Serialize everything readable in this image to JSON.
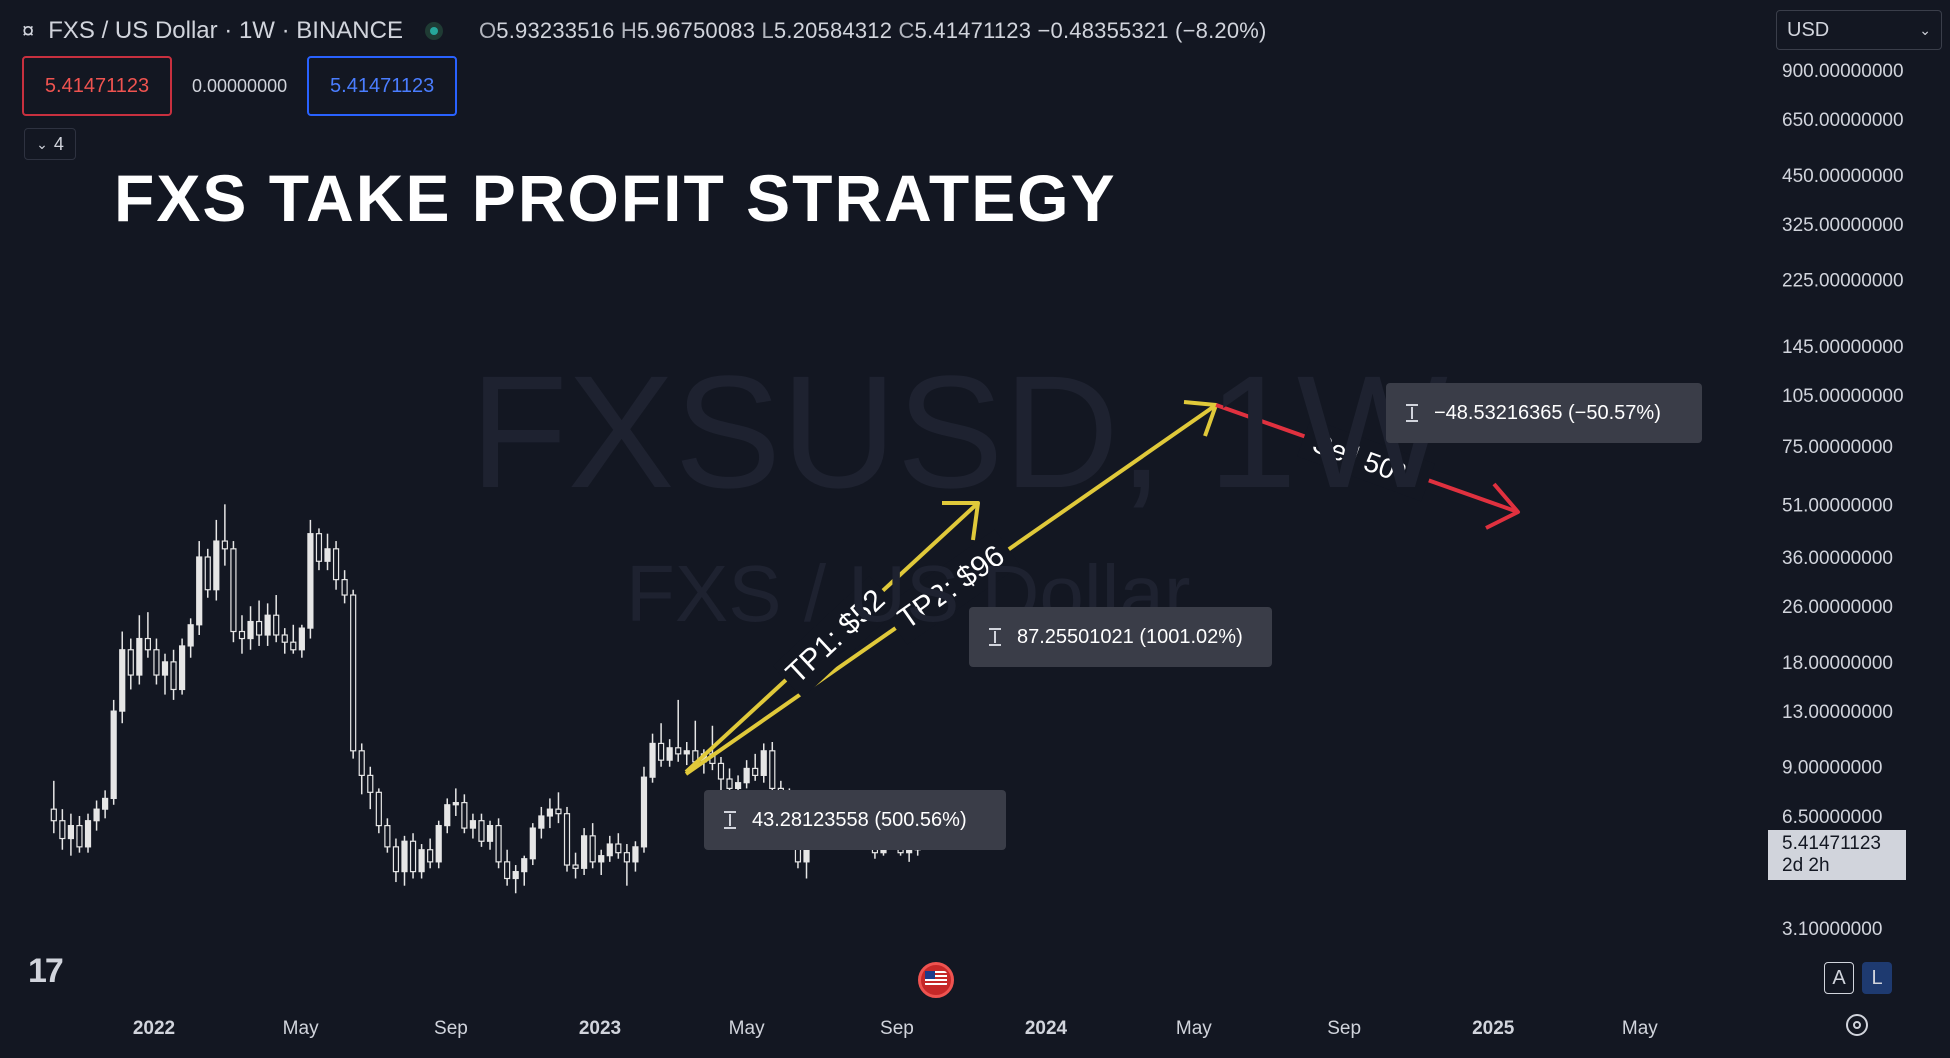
{
  "header": {
    "symbol_icon": "currency-sign-icon",
    "symbol": "FXS / US Dollar · 1W · BINANCE",
    "ohlc": {
      "o_label": "O",
      "o": "5.93233516",
      "h_label": "H",
      "h": "5.96750083",
      "l_label": "L",
      "l": "5.20584312",
      "c_label": "C",
      "c": "5.41471123",
      "change": "−0.48355321 (−8.20%)"
    },
    "currency": "USD"
  },
  "order": {
    "sell_price": "5.41471123",
    "spread": "0.00000000",
    "buy_price": "5.41471123"
  },
  "indicators_count": "4",
  "annotation_title": "FXS TAKE PROFIT STRATEGY",
  "watermark": {
    "line1": "FXSUSD, 1W",
    "line2": "FXS / US Dollar"
  },
  "measures": [
    {
      "text": "43.28123558 (500.56%)"
    },
    {
      "text": "87.25501021 (1001.02%)"
    },
    {
      "text": "−48.53216365 (−50.57%)"
    }
  ],
  "current_price_tag": {
    "price": "5.41471123",
    "countdown": "2d 2h"
  },
  "colors": {
    "background": "#131722",
    "arrow_tp": "#e0c93a",
    "arrow_sell": "#e0313f",
    "candle": "#e6e6e6"
  },
  "chart_data": {
    "type": "candlestick",
    "y_scale": "log",
    "y_ticks": [
      "900.00000000",
      "650.00000000",
      "450.00000000",
      "325.00000000",
      "225.00000000",
      "145.00000000",
      "105.00000000",
      "75.00000000",
      "51.00000000",
      "36.00000000",
      "26.00000000",
      "18.00000000",
      "13.00000000",
      "9.00000000",
      "6.50000000",
      "3.10000000"
    ],
    "y_tick_values": [
      900,
      650,
      450,
      325,
      225,
      145,
      105,
      75,
      51,
      36,
      26,
      18,
      13,
      9,
      6.5,
      3.1
    ],
    "x_ticks": [
      {
        "label": "2022",
        "date": "2022-01-01",
        "year": true
      },
      {
        "label": "May",
        "date": "2022-05-01",
        "year": false
      },
      {
        "label": "Sep",
        "date": "2022-09-01",
        "year": false
      },
      {
        "label": "2023",
        "date": "2023-01-01",
        "year": true
      },
      {
        "label": "May",
        "date": "2023-05-01",
        "year": false
      },
      {
        "label": "Sep",
        "date": "2023-09-01",
        "year": false
      },
      {
        "label": "2024",
        "date": "2024-01-01",
        "year": true
      },
      {
        "label": "May",
        "date": "2024-05-01",
        "year": false
      },
      {
        "label": "Sep",
        "date": "2024-09-01",
        "year": false
      },
      {
        "label": "2025",
        "date": "2025-01-01",
        "year": true
      },
      {
        "label": "May",
        "date": "2025-05-01",
        "year": false
      }
    ],
    "candles": [
      {
        "date": "2021-10-11",
        "o": 6.8,
        "h": 8.2,
        "l": 5.8,
        "c": 6.3
      },
      {
        "date": "2021-10-18",
        "o": 6.3,
        "h": 6.8,
        "l": 5.2,
        "c": 5.6
      },
      {
        "date": "2021-10-25",
        "o": 5.6,
        "h": 6.6,
        "l": 5.0,
        "c": 6.1
      },
      {
        "date": "2021-11-01",
        "o": 6.1,
        "h": 6.5,
        "l": 5.1,
        "c": 5.3
      },
      {
        "date": "2021-11-08",
        "o": 5.3,
        "h": 6.6,
        "l": 5.1,
        "c": 6.3
      },
      {
        "date": "2021-11-15",
        "o": 6.3,
        "h": 7.2,
        "l": 5.9,
        "c": 6.8
      },
      {
        "date": "2021-11-22",
        "o": 6.8,
        "h": 7.7,
        "l": 6.4,
        "c": 7.3
      },
      {
        "date": "2021-11-29",
        "o": 7.3,
        "h": 14.0,
        "l": 7.0,
        "c": 13.0
      },
      {
        "date": "2021-12-06",
        "o": 13.0,
        "h": 22.0,
        "l": 12.0,
        "c": 19.5
      },
      {
        "date": "2021-12-13",
        "o": 19.5,
        "h": 21.0,
        "l": 15.0,
        "c": 16.5
      },
      {
        "date": "2021-12-20",
        "o": 16.5,
        "h": 24.5,
        "l": 15.5,
        "c": 21.0
      },
      {
        "date": "2021-12-27",
        "o": 21.0,
        "h": 25.0,
        "l": 18.5,
        "c": 19.5
      },
      {
        "date": "2022-01-03",
        "o": 19.5,
        "h": 21.0,
        "l": 15.5,
        "c": 16.5
      },
      {
        "date": "2022-01-10",
        "o": 16.5,
        "h": 19.0,
        "l": 14.5,
        "c": 18.0
      },
      {
        "date": "2022-01-17",
        "o": 18.0,
        "h": 19.5,
        "l": 14.0,
        "c": 15.0
      },
      {
        "date": "2022-01-24",
        "o": 15.0,
        "h": 21.0,
        "l": 14.5,
        "c": 20.0
      },
      {
        "date": "2022-01-31",
        "o": 20.0,
        "h": 24.0,
        "l": 18.5,
        "c": 23.0
      },
      {
        "date": "2022-02-07",
        "o": 23.0,
        "h": 40.0,
        "l": 21.5,
        "c": 36.0
      },
      {
        "date": "2022-02-14",
        "o": 36.0,
        "h": 38.0,
        "l": 27.5,
        "c": 29.0
      },
      {
        "date": "2022-02-21",
        "o": 29.0,
        "h": 46.0,
        "l": 27.0,
        "c": 40.0
      },
      {
        "date": "2022-02-28",
        "o": 40.0,
        "h": 51.0,
        "l": 34.0,
        "c": 38.0
      },
      {
        "date": "2022-03-07",
        "o": 38.0,
        "h": 40.0,
        "l": 20.5,
        "c": 22.0
      },
      {
        "date": "2022-03-14",
        "o": 22.0,
        "h": 24.5,
        "l": 19.0,
        "c": 21.0
      },
      {
        "date": "2022-03-21",
        "o": 21.0,
        "h": 26.0,
        "l": 19.5,
        "c": 23.5
      },
      {
        "date": "2022-03-28",
        "o": 23.5,
        "h": 27.0,
        "l": 20.0,
        "c": 21.5
      },
      {
        "date": "2022-04-04",
        "o": 21.5,
        "h": 26.5,
        "l": 20.0,
        "c": 24.5
      },
      {
        "date": "2022-04-11",
        "o": 24.5,
        "h": 28.0,
        "l": 20.5,
        "c": 21.5
      },
      {
        "date": "2022-04-18",
        "o": 21.5,
        "h": 22.5,
        "l": 19.0,
        "c": 20.5
      },
      {
        "date": "2022-04-25",
        "o": 20.5,
        "h": 23.0,
        "l": 19.0,
        "c": 19.5
      },
      {
        "date": "2022-05-02",
        "o": 19.5,
        "h": 23.0,
        "l": 18.5,
        "c": 22.5
      },
      {
        "date": "2022-05-09",
        "o": 22.5,
        "h": 46.0,
        "l": 21.0,
        "c": 42.0
      },
      {
        "date": "2022-05-16",
        "o": 42.0,
        "h": 43.5,
        "l": 33.0,
        "c": 35.0
      },
      {
        "date": "2022-05-23",
        "o": 35.0,
        "h": 42.0,
        "l": 33.0,
        "c": 38.0
      },
      {
        "date": "2022-05-30",
        "o": 38.0,
        "h": 40.0,
        "l": 29.0,
        "c": 31.0
      },
      {
        "date": "2022-06-06",
        "o": 31.0,
        "h": 33.0,
        "l": 26.5,
        "c": 28.0
      },
      {
        "date": "2022-06-13",
        "o": 28.0,
        "h": 29.0,
        "l": 9.5,
        "c": 10.0
      },
      {
        "date": "2022-06-20",
        "o": 10.0,
        "h": 10.5,
        "l": 7.5,
        "c": 8.5
      },
      {
        "date": "2022-06-27",
        "o": 8.5,
        "h": 9.0,
        "l": 6.8,
        "c": 7.6
      },
      {
        "date": "2022-07-04",
        "o": 7.6,
        "h": 7.8,
        "l": 5.8,
        "c": 6.1
      },
      {
        "date": "2022-07-11",
        "o": 6.1,
        "h": 6.4,
        "l": 5.1,
        "c": 5.3
      },
      {
        "date": "2022-07-18",
        "o": 5.3,
        "h": 5.6,
        "l": 4.2,
        "c": 4.5
      },
      {
        "date": "2022-07-25",
        "o": 4.5,
        "h": 5.7,
        "l": 4.1,
        "c": 5.5
      },
      {
        "date": "2022-08-01",
        "o": 5.5,
        "h": 5.8,
        "l": 4.3,
        "c": 4.5
      },
      {
        "date": "2022-08-08",
        "o": 4.5,
        "h": 5.4,
        "l": 4.3,
        "c": 5.2
      },
      {
        "date": "2022-08-15",
        "o": 5.2,
        "h": 5.6,
        "l": 4.6,
        "c": 4.8
      },
      {
        "date": "2022-08-22",
        "o": 4.8,
        "h": 6.3,
        "l": 4.6,
        "c": 6.1
      },
      {
        "date": "2022-08-29",
        "o": 6.1,
        "h": 7.3,
        "l": 5.8,
        "c": 7.0
      },
      {
        "date": "2022-09-05",
        "o": 7.0,
        "h": 7.8,
        "l": 6.5,
        "c": 7.1
      },
      {
        "date": "2022-09-12",
        "o": 7.1,
        "h": 7.5,
        "l": 5.8,
        "c": 6.0
      },
      {
        "date": "2022-09-19",
        "o": 6.0,
        "h": 6.6,
        "l": 5.6,
        "c": 6.3
      },
      {
        "date": "2022-09-26",
        "o": 6.3,
        "h": 6.6,
        "l": 5.3,
        "c": 5.5
      },
      {
        "date": "2022-10-03",
        "o": 5.5,
        "h": 6.3,
        "l": 5.2,
        "c": 6.1
      },
      {
        "date": "2022-10-10",
        "o": 6.1,
        "h": 6.4,
        "l": 4.6,
        "c": 4.8
      },
      {
        "date": "2022-10-17",
        "o": 4.8,
        "h": 5.2,
        "l": 4.1,
        "c": 4.3
      },
      {
        "date": "2022-10-24",
        "o": 4.3,
        "h": 4.7,
        "l": 3.9,
        "c": 4.5
      },
      {
        "date": "2022-10-31",
        "o": 4.5,
        "h": 5.0,
        "l": 4.1,
        "c": 4.9
      },
      {
        "date": "2022-11-07",
        "o": 4.9,
        "h": 6.2,
        "l": 4.7,
        "c": 6.0
      },
      {
        "date": "2022-11-14",
        "o": 6.0,
        "h": 6.9,
        "l": 5.6,
        "c": 6.5
      },
      {
        "date": "2022-11-21",
        "o": 6.5,
        "h": 7.3,
        "l": 6.0,
        "c": 6.8
      },
      {
        "date": "2022-11-28",
        "o": 6.8,
        "h": 7.6,
        "l": 6.2,
        "c": 6.6
      },
      {
        "date": "2022-12-05",
        "o": 6.6,
        "h": 6.9,
        "l": 4.5,
        "c": 4.7
      },
      {
        "date": "2022-12-12",
        "o": 4.7,
        "h": 5.1,
        "l": 4.3,
        "c": 4.6
      },
      {
        "date": "2022-12-19",
        "o": 4.6,
        "h": 6.0,
        "l": 4.4,
        "c": 5.7
      },
      {
        "date": "2022-12-26",
        "o": 5.7,
        "h": 6.2,
        "l": 4.6,
        "c": 4.8
      },
      {
        "date": "2023-01-02",
        "o": 4.8,
        "h": 5.2,
        "l": 4.4,
        "c": 5.0
      },
      {
        "date": "2023-01-09",
        "o": 5.0,
        "h": 5.7,
        "l": 4.8,
        "c": 5.4
      },
      {
        "date": "2023-01-16",
        "o": 5.4,
        "h": 5.8,
        "l": 4.9,
        "c": 5.1
      },
      {
        "date": "2023-01-23",
        "o": 5.1,
        "h": 5.4,
        "l": 4.1,
        "c": 4.8
      },
      {
        "date": "2023-01-30",
        "o": 4.8,
        "h": 5.5,
        "l": 4.5,
        "c": 5.3
      },
      {
        "date": "2023-02-06",
        "o": 5.3,
        "h": 9.0,
        "l": 5.1,
        "c": 8.4
      },
      {
        "date": "2023-02-13",
        "o": 8.4,
        "h": 11.2,
        "l": 8.1,
        "c": 10.5
      },
      {
        "date": "2023-02-20",
        "o": 10.5,
        "h": 12.0,
        "l": 9.0,
        "c": 9.4
      },
      {
        "date": "2023-02-27",
        "o": 9.4,
        "h": 10.8,
        "l": 9.0,
        "c": 10.2
      },
      {
        "date": "2023-03-06",
        "o": 10.2,
        "h": 14.0,
        "l": 9.3,
        "c": 9.8
      },
      {
        "date": "2023-03-13",
        "o": 9.8,
        "h": 10.6,
        "l": 9.1,
        "c": 10.0
      },
      {
        "date": "2023-03-20",
        "o": 10.0,
        "h": 12.2,
        "l": 9.0,
        "c": 9.3
      },
      {
        "date": "2023-03-27",
        "o": 9.3,
        "h": 10.1,
        "l": 8.6,
        "c": 9.8
      },
      {
        "date": "2023-04-03",
        "o": 9.8,
        "h": 11.8,
        "l": 8.8,
        "c": 9.2
      },
      {
        "date": "2023-04-10",
        "o": 9.2,
        "h": 9.6,
        "l": 6.5,
        "c": 8.3
      },
      {
        "date": "2023-04-17",
        "o": 8.3,
        "h": 8.9,
        "l": 7.5,
        "c": 7.8
      },
      {
        "date": "2023-04-24",
        "o": 7.8,
        "h": 8.5,
        "l": 7.3,
        "c": 8.1
      },
      {
        "date": "2023-05-01",
        "o": 8.1,
        "h": 9.4,
        "l": 7.8,
        "c": 8.9
      },
      {
        "date": "2023-05-08",
        "o": 8.9,
        "h": 9.8,
        "l": 8.2,
        "c": 8.5
      },
      {
        "date": "2023-05-15",
        "o": 8.5,
        "h": 10.5,
        "l": 8.1,
        "c": 10.0
      },
      {
        "date": "2023-05-22",
        "o": 10.0,
        "h": 10.6,
        "l": 7.6,
        "c": 7.8
      },
      {
        "date": "2023-05-29",
        "o": 7.8,
        "h": 8.2,
        "l": 7.3,
        "c": 7.6
      },
      {
        "date": "2023-06-05",
        "o": 7.6,
        "h": 7.8,
        "l": 5.9,
        "c": 6.1
      },
      {
        "date": "2023-06-12",
        "o": 6.1,
        "h": 6.4,
        "l": 4.6,
        "c": 4.8
      },
      {
        "date": "2023-06-19",
        "o": 4.8,
        "h": 5.5,
        "l": 4.3,
        "c": 5.3
      },
      {
        "date": "2023-06-26",
        "o": 5.3,
        "h": 6.8,
        "l": 5.2,
        "c": 6.2
      },
      {
        "date": "2023-07-03",
        "o": 6.2,
        "h": 6.8,
        "l": 5.8,
        "c": 6.2
      },
      {
        "date": "2023-07-10",
        "o": 6.2,
        "h": 6.8,
        "l": 5.9,
        "c": 6.1
      },
      {
        "date": "2023-07-17",
        "o": 6.1,
        "h": 6.5,
        "l": 5.8,
        "c": 6.0
      },
      {
        "date": "2023-07-24",
        "o": 6.0,
        "h": 6.3,
        "l": 5.6,
        "c": 5.8
      },
      {
        "date": "2023-07-31",
        "o": 5.8,
        "h": 6.1,
        "l": 5.5,
        "c": 5.7
      },
      {
        "date": "2023-08-07",
        "o": 5.7,
        "h": 5.9,
        "l": 5.3,
        "c": 5.4
      },
      {
        "date": "2023-08-14",
        "o": 5.4,
        "h": 5.6,
        "l": 4.9,
        "c": 5.1
      },
      {
        "date": "2023-08-21",
        "o": 5.1,
        "h": 5.8,
        "l": 5.0,
        "c": 5.6
      },
      {
        "date": "2023-08-28",
        "o": 5.6,
        "h": 6.2,
        "l": 5.2,
        "c": 5.3
      },
      {
        "date": "2023-09-04",
        "o": 5.3,
        "h": 5.5,
        "l": 5.0,
        "c": 5.1
      },
      {
        "date": "2023-09-11",
        "o": 5.1,
        "h": 5.4,
        "l": 4.8,
        "c": 5.2
      },
      {
        "date": "2023-09-18",
        "o": 5.2,
        "h": 5.9,
        "l": 5.0,
        "c": 5.5
      },
      {
        "date": "2023-09-25",
        "o": 5.5,
        "h": 6.1,
        "l": 5.3,
        "c": 5.9
      },
      {
        "date": "2023-10-02",
        "o": 5.9,
        "h": 5.97,
        "l": 5.21,
        "c": 5.41
      }
    ]
  }
}
